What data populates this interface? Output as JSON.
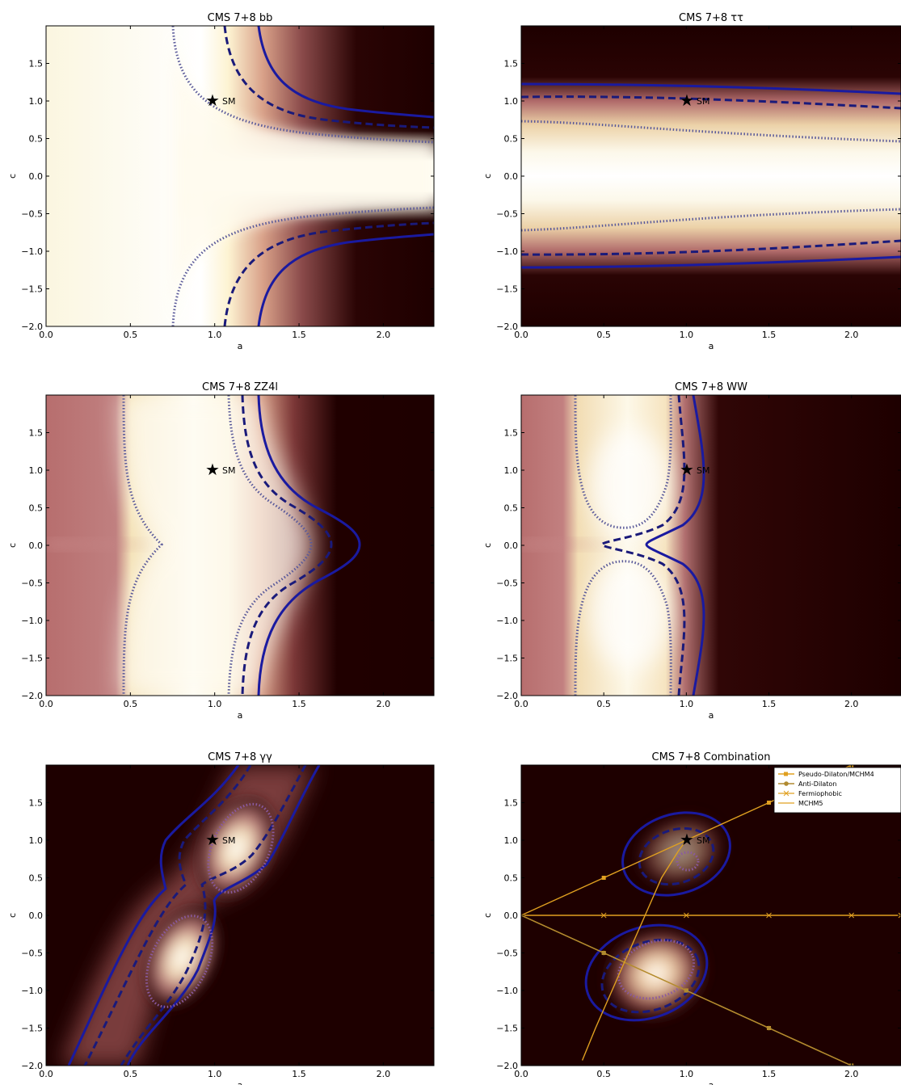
{
  "figure": {
    "panels": [
      {
        "id": "bb",
        "title": "CMS 7+8 bb"
      },
      {
        "id": "tautau",
        "title": "CMS 7+8 ττ"
      },
      {
        "id": "zz4l",
        "title": "CMS 7+8 ZZ4l"
      },
      {
        "id": "ww",
        "title": "CMS 7+8 WW"
      },
      {
        "id": "gammagamma",
        "title": "CMS 7+8 γγ"
      },
      {
        "id": "combination",
        "title": "CMS 7+8 Combination"
      }
    ]
  },
  "chart_data": [
    {
      "type": "heatmap",
      "title": "CMS 7+8 bb",
      "xlabel": "a",
      "ylabel": "c",
      "xlim": [
        0.0,
        2.3
      ],
      "ylim": [
        -2.0,
        2.0
      ],
      "xticks": [
        "0.0",
        "0.5",
        "1.0",
        "1.5",
        "2.0"
      ],
      "yticks": [
        "-2.0",
        "-1.5",
        "-1.0",
        "-0.5",
        "0.0",
        "0.5",
        "1.0",
        "1.5"
      ],
      "colormap": [
        "#1e0000",
        "#b76e6e",
        "#fbf6e0",
        "#ffffff"
      ],
      "contours": {
        "dotted": "#5a5a9a",
        "dashed": "#1a1a7a",
        "solid": "#1a1aa0"
      },
      "marker": {
        "label": "SM",
        "a": 1.0,
        "c": 1.0
      }
    },
    {
      "type": "heatmap",
      "title": "CMS 7+8 ττ",
      "xlabel": "a",
      "ylabel": "c",
      "xlim": [
        0.0,
        2.3
      ],
      "ylim": [
        -2.0,
        2.0
      ],
      "xticks": [
        "0.0",
        "0.5",
        "1.0",
        "1.5",
        "2.0"
      ],
      "yticks": [
        "-2.0",
        "-1.5",
        "-1.0",
        "-0.5",
        "0.0",
        "0.5",
        "1.0",
        "1.5"
      ],
      "marker": {
        "label": "SM",
        "a": 1.0,
        "c": 1.0
      }
    },
    {
      "type": "heatmap",
      "title": "CMS 7+8 ZZ4l",
      "xlabel": "a",
      "ylabel": "c",
      "xlim": [
        0.0,
        2.3
      ],
      "ylim": [
        -2.0,
        2.0
      ],
      "xticks": [
        "0.0",
        "0.5",
        "1.0",
        "1.5",
        "2.0"
      ],
      "yticks": [
        "-2.0",
        "-1.5",
        "-1.0",
        "-0.5",
        "0.0",
        "0.5",
        "1.0",
        "1.5"
      ],
      "marker": {
        "label": "SM",
        "a": 1.0,
        "c": 1.0
      }
    },
    {
      "type": "heatmap",
      "title": "CMS 7+8 WW",
      "xlabel": "a",
      "ylabel": "c",
      "xlim": [
        0.0,
        2.3
      ],
      "ylim": [
        -2.0,
        2.0
      ],
      "xticks": [
        "0.0",
        "0.5",
        "1.0",
        "1.5",
        "2.0"
      ],
      "yticks": [
        "-2.0",
        "-1.5",
        "-1.0",
        "-0.5",
        "0.0",
        "0.5",
        "1.0",
        "1.5"
      ],
      "marker": {
        "label": "SM",
        "a": 1.0,
        "c": 1.0
      }
    },
    {
      "type": "heatmap",
      "title": "CMS 7+8 γγ",
      "xlabel": "a",
      "ylabel": "c",
      "xlim": [
        0.0,
        2.3
      ],
      "ylim": [
        -2.0,
        2.0
      ],
      "xticks": [
        "0.0",
        "0.5",
        "1.0",
        "1.5",
        "2.0"
      ],
      "yticks": [
        "-2.0",
        "-1.5",
        "-1.0",
        "-0.5",
        "0.0",
        "0.5",
        "1.0",
        "1.5"
      ],
      "marker": {
        "label": "SM",
        "a": 1.0,
        "c": 1.0
      }
    },
    {
      "type": "heatmap",
      "title": "CMS 7+8 Combination",
      "xlabel": "a",
      "ylabel": "c",
      "xlim": [
        0.0,
        2.3
      ],
      "ylim": [
        -2.0,
        2.0
      ],
      "xticks": [
        "0.0",
        "0.5",
        "1.0",
        "1.5",
        "2.0"
      ],
      "yticks": [
        "-2.0",
        "-1.5",
        "-1.0",
        "-0.5",
        "0.0",
        "0.5",
        "1.0",
        "1.5"
      ],
      "marker": {
        "label": "SM",
        "a": 1.0,
        "c": 1.0
      },
      "legend_position": "top-right",
      "series": [
        {
          "name": "Pseudo-Dilaton/MCHM4",
          "marker": "square",
          "color": "#e0a020",
          "points": [
            [
              0.0,
              0.0
            ],
            [
              0.5,
              0.5
            ],
            [
              1.0,
              1.0
            ],
            [
              1.5,
              1.5
            ],
            [
              2.0,
              2.0
            ]
          ]
        },
        {
          "name": "Pseudo-Dilaton/MCHM4",
          "marker": "square",
          "color": "#e0a020",
          "points": [
            [
              0.0,
              0.0
            ],
            [
              0.5,
              -0.5
            ],
            [
              1.0,
              -1.0
            ],
            [
              1.5,
              -1.5
            ],
            [
              2.0,
              -2.0
            ]
          ]
        },
        {
          "name": "Anti-Dilaton",
          "marker": "circle",
          "color": "#b08a30",
          "points": [
            [
              0.0,
              0.0
            ],
            [
              0.5,
              -0.5
            ],
            [
              1.0,
              -1.0
            ],
            [
              1.5,
              -1.5
            ],
            [
              2.0,
              -2.0
            ]
          ]
        },
        {
          "name": "Fermiophobic",
          "marker": "x",
          "color": "#e0a020",
          "points": [
            [
              0.0,
              0.0
            ],
            [
              0.5,
              0.0
            ],
            [
              1.0,
              0.0
            ],
            [
              1.5,
              0.0
            ],
            [
              2.0,
              0.0
            ],
            [
              2.3,
              0.0
            ]
          ]
        },
        {
          "name": "MCHM5",
          "marker": "none",
          "color": "#e0a020",
          "points": [
            [
              0.37,
              -1.93
            ],
            [
              0.45,
              -1.5
            ],
            [
              0.55,
              -1.0
            ],
            [
              0.65,
              -0.5
            ],
            [
              0.75,
              0.0
            ],
            [
              0.85,
              0.5
            ],
            [
              0.95,
              0.85
            ],
            [
              1.0,
              1.0
            ]
          ]
        }
      ]
    }
  ]
}
